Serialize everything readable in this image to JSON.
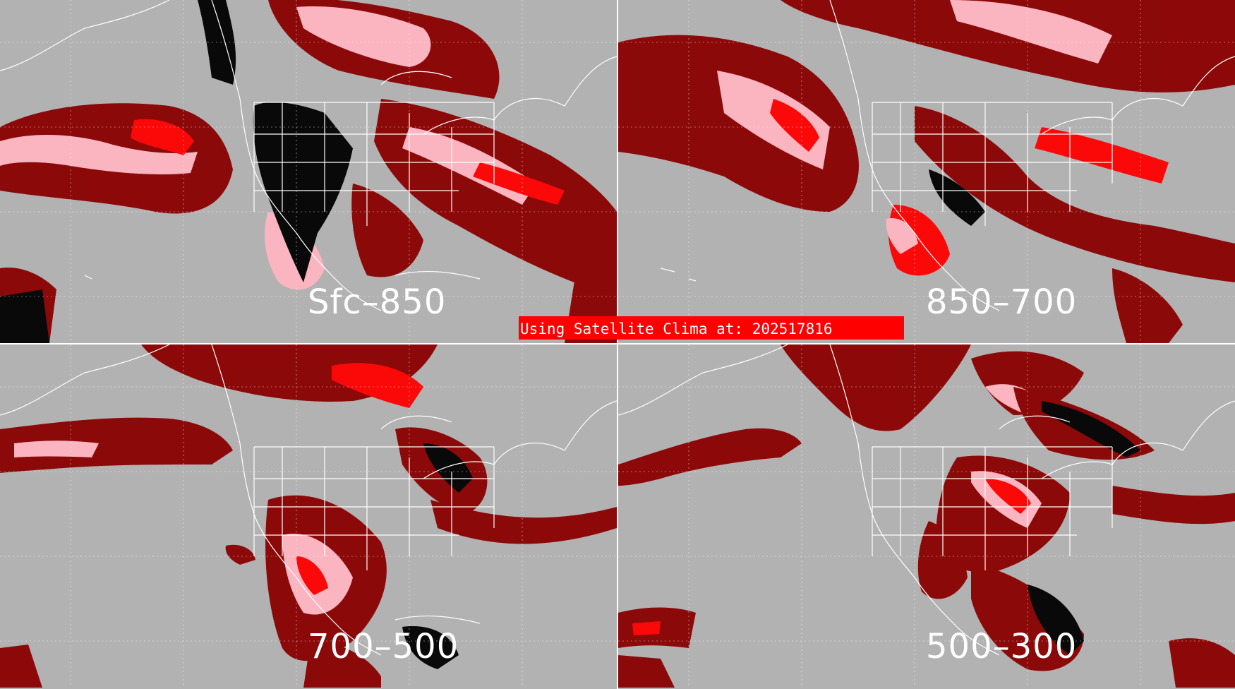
{
  "panels": [
    {
      "label": "Sfc–850"
    },
    {
      "label": "850–700"
    },
    {
      "label": "700–500"
    },
    {
      "label": "500–300"
    }
  ],
  "banner": {
    "text": "Using Satellite Clima at: 202517816"
  },
  "colors": {
    "background": "#b2b2b2",
    "dark_red": "#8b0000",
    "medium_red": "#9e4c4c",
    "bright_red": "#ff0000",
    "pink": "#ffb6c1",
    "black": "#000000",
    "coastline": "#ffffff"
  }
}
